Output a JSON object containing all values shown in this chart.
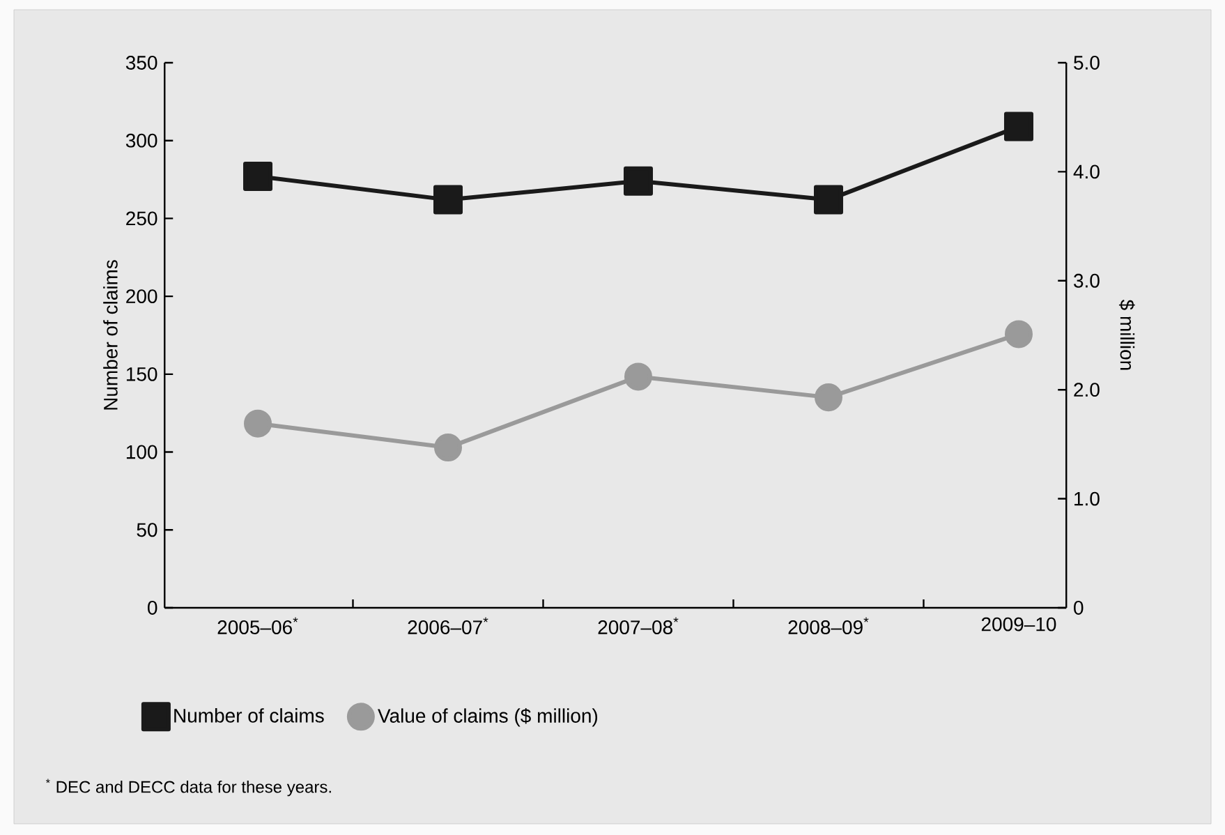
{
  "chart_data": {
    "type": "line",
    "categories": [
      "2005–06$^{*}$",
      "2006–07$^{*}$",
      "2007–08$^{*}$",
      "2008–09$^{*}$",
      "2009–10"
    ],
    "series": [
      {
        "name": "Number of claims",
        "color": "#1a1a1a",
        "marker": "square",
        "values": [
          277,
          262,
          274,
          262,
          309
        ]
      },
      {
        "name": "Value of claims ($ million)",
        "color": "#9a9a9a",
        "marker": "circle",
        "axis": "y2",
        "values": [
          1.69,
          1.47,
          2.12,
          1.93,
          2.51
        ]
      }
    ],
    "ylabel": "Number of claims",
    "y2label": "$ million",
    "ylim": [
      0,
      350
    ],
    "yticks": [
      0,
      50,
      100,
      150,
      200,
      250,
      300,
      350
    ],
    "y2lim": [
      0,
      5
    ],
    "y2ticks": [
      0,
      {
        "value": 1,
        "label": "1.0"
      },
      {
        "value": 2,
        "label": "2.0"
      },
      {
        "value": 3,
        "label": "3.0"
      },
      {
        "value": 4,
        "label": "4.0"
      },
      {
        "value": 5,
        "label": "5.0"
      }
    ],
    "legend": "bottom",
    "annotations": [
      "$^{*}$ DEC and DECC data for these years."
    ]
  }
}
